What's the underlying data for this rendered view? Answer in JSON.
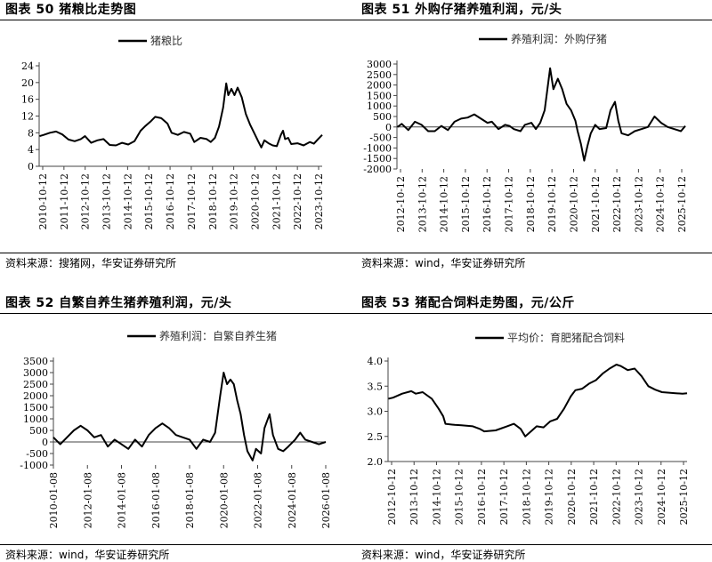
{
  "panels": [
    {
      "title": "图表 50 猪粮比走势图",
      "source": "资料来源：搜猪网，华安证券研究所"
    },
    {
      "title": "图表 51 外购仔猪养殖利润，元/头",
      "source": "资料来源：wind，华安证券研究所"
    },
    {
      "title": "图表 52 自繁自养生猪养殖利润，元/头",
      "source": "资料来源：wind，华安证券研究所"
    },
    {
      "title": "图表 53 猪配合饲料走势图，元/公斤",
      "source": "资料来源：wind，华安证券研究所"
    }
  ],
  "chart_data": [
    {
      "type": "line",
      "legend": "猪粮比",
      "legend_position": "top-center",
      "grid": false,
      "color": "#000000",
      "ylim": [
        0,
        24
      ],
      "yticks": [
        0,
        4,
        8,
        12,
        16,
        20,
        24
      ],
      "xlim": [
        2010.78,
        2024.5
      ],
      "xtick_labels": [
        "2010-10-12",
        "2011-10-12",
        "2012-10-12",
        "2013-10-12",
        "2014-10-12",
        "2015-10-12",
        "2016-10-12",
        "2017-10-12",
        "2018-10-12",
        "2019-10-12",
        "2020-10-12",
        "2021-10-12",
        "2022-10-12",
        "2023-10-12"
      ],
      "points": [
        [
          2010.8,
          7.2
        ],
        [
          2011.0,
          7.5
        ],
        [
          2011.3,
          8.0
        ],
        [
          2011.6,
          8.3
        ],
        [
          2011.9,
          7.6
        ],
        [
          2012.2,
          6.4
        ],
        [
          2012.5,
          6.0
        ],
        [
          2012.8,
          6.5
        ],
        [
          2013.0,
          7.2
        ],
        [
          2013.3,
          5.6
        ],
        [
          2013.6,
          6.2
        ],
        [
          2013.9,
          6.5
        ],
        [
          2014.2,
          5.1
        ],
        [
          2014.5,
          5.0
        ],
        [
          2014.8,
          5.6
        ],
        [
          2015.1,
          5.2
        ],
        [
          2015.4,
          6.0
        ],
        [
          2015.7,
          8.5
        ],
        [
          2015.9,
          9.5
        ],
        [
          2016.2,
          10.8
        ],
        [
          2016.4,
          11.8
        ],
        [
          2016.7,
          11.5
        ],
        [
          2017.0,
          10.2
        ],
        [
          2017.2,
          8.0
        ],
        [
          2017.5,
          7.5
        ],
        [
          2017.8,
          8.2
        ],
        [
          2018.1,
          7.8
        ],
        [
          2018.3,
          5.8
        ],
        [
          2018.6,
          6.8
        ],
        [
          2018.9,
          6.5
        ],
        [
          2019.1,
          5.8
        ],
        [
          2019.3,
          6.8
        ],
        [
          2019.5,
          9.5
        ],
        [
          2019.7,
          14.0
        ],
        [
          2019.85,
          19.8
        ],
        [
          2019.95,
          17.0
        ],
        [
          2020.1,
          18.5
        ],
        [
          2020.25,
          17.0
        ],
        [
          2020.4,
          18.8
        ],
        [
          2020.6,
          16.5
        ],
        [
          2020.8,
          12.5
        ],
        [
          2021.0,
          10.0
        ],
        [
          2021.2,
          8.0
        ],
        [
          2021.4,
          6.0
        ],
        [
          2021.55,
          4.5
        ],
        [
          2021.7,
          6.2
        ],
        [
          2021.9,
          5.5
        ],
        [
          2022.1,
          5.0
        ],
        [
          2022.3,
          4.8
        ],
        [
          2022.5,
          7.5
        ],
        [
          2022.6,
          8.5
        ],
        [
          2022.7,
          6.5
        ],
        [
          2022.85,
          6.8
        ],
        [
          2023.0,
          5.3
        ],
        [
          2023.3,
          5.5
        ],
        [
          2023.6,
          5.0
        ],
        [
          2023.9,
          5.8
        ],
        [
          2024.1,
          5.4
        ],
        [
          2024.3,
          6.5
        ],
        [
          2024.5,
          7.5
        ]
      ]
    },
    {
      "type": "line",
      "legend": "养殖利润：外购仔猪",
      "legend_position": "top-center",
      "grid": false,
      "color": "#000000",
      "ylim": [
        -2000,
        3000
      ],
      "yticks": [
        -2000,
        -1500,
        -1000,
        -500,
        0,
        500,
        1000,
        1500,
        2000,
        2500,
        3000
      ],
      "xlim": [
        2012.78,
        2025.9
      ],
      "xtick_labels": [
        "2012-10-12",
        "2013-10-12",
        "2014-10-12",
        "2015-10-12",
        "2016-10-12",
        "2017-10-12",
        "2018-10-12",
        "2019-10-12",
        "2020-10-12",
        "2021-10-12",
        "2022-10-12",
        "2023-10-12",
        "2024-10-12",
        "2025-10-12"
      ],
      "points": [
        [
          2012.8,
          0
        ],
        [
          2013.0,
          150
        ],
        [
          2013.3,
          -150
        ],
        [
          2013.6,
          250
        ],
        [
          2013.9,
          100
        ],
        [
          2014.2,
          -200
        ],
        [
          2014.5,
          -200
        ],
        [
          2014.8,
          50
        ],
        [
          2015.1,
          -150
        ],
        [
          2015.4,
          250
        ],
        [
          2015.7,
          400
        ],
        [
          2016.0,
          450
        ],
        [
          2016.3,
          600
        ],
        [
          2016.6,
          400
        ],
        [
          2016.9,
          200
        ],
        [
          2017.1,
          250
        ],
        [
          2017.4,
          -100
        ],
        [
          2017.7,
          100
        ],
        [
          2017.9,
          50
        ],
        [
          2018.1,
          -100
        ],
        [
          2018.4,
          -200
        ],
        [
          2018.6,
          100
        ],
        [
          2018.9,
          200
        ],
        [
          2019.1,
          -100
        ],
        [
          2019.3,
          200
        ],
        [
          2019.5,
          800
        ],
        [
          2019.75,
          2800
        ],
        [
          2019.9,
          1800
        ],
        [
          2020.1,
          2300
        ],
        [
          2020.3,
          1800
        ],
        [
          2020.5,
          1100
        ],
        [
          2020.7,
          800
        ],
        [
          2020.9,
          300
        ],
        [
          2021.0,
          -200
        ],
        [
          2021.15,
          -800
        ],
        [
          2021.3,
          -1600
        ],
        [
          2021.45,
          -900
        ],
        [
          2021.6,
          -300
        ],
        [
          2021.8,
          100
        ],
        [
          2022.0,
          -100
        ],
        [
          2022.3,
          -50
        ],
        [
          2022.5,
          800
        ],
        [
          2022.7,
          1200
        ],
        [
          2022.85,
          300
        ],
        [
          2023.0,
          -300
        ],
        [
          2023.3,
          -400
        ],
        [
          2023.6,
          -200
        ],
        [
          2023.9,
          -100
        ],
        [
          2024.2,
          0
        ],
        [
          2024.5,
          500
        ],
        [
          2024.8,
          200
        ],
        [
          2025.1,
          0
        ],
        [
          2025.4,
          -100
        ],
        [
          2025.7,
          -200
        ],
        [
          2025.9,
          50
        ]
      ]
    },
    {
      "type": "line",
      "legend": "养殖利润：自繁自养生猪",
      "legend_position": "top-center",
      "grid": false,
      "color": "#000000",
      "ylim": [
        -1000,
        3500
      ],
      "yticks": [
        -1000,
        -500,
        0,
        500,
        1000,
        1500,
        2000,
        2500,
        3000,
        3500
      ],
      "xlim": [
        2010.0,
        2026.0
      ],
      "xtick_labels": [
        "2010-01-08",
        "2012-01-08",
        "2014-01-08",
        "2016-01-08",
        "2018-01-08",
        "2020-01-08",
        "2022-01-08",
        "2024-01-08",
        "2026-01-08"
      ],
      "points": [
        [
          2010.0,
          200
        ],
        [
          2010.4,
          -100
        ],
        [
          2010.8,
          200
        ],
        [
          2011.2,
          500
        ],
        [
          2011.6,
          700
        ],
        [
          2012.0,
          500
        ],
        [
          2012.4,
          200
        ],
        [
          2012.8,
          300
        ],
        [
          2013.2,
          -200
        ],
        [
          2013.6,
          100
        ],
        [
          2014.0,
          -100
        ],
        [
          2014.4,
          -300
        ],
        [
          2014.8,
          100
        ],
        [
          2015.2,
          -200
        ],
        [
          2015.6,
          300
        ],
        [
          2016.0,
          600
        ],
        [
          2016.4,
          800
        ],
        [
          2016.8,
          600
        ],
        [
          2017.2,
          300
        ],
        [
          2017.6,
          200
        ],
        [
          2018.0,
          100
        ],
        [
          2018.4,
          -300
        ],
        [
          2018.8,
          100
        ],
        [
          2019.2,
          0
        ],
        [
          2019.5,
          400
        ],
        [
          2019.8,
          2000
        ],
        [
          2020.0,
          3000
        ],
        [
          2020.2,
          2500
        ],
        [
          2020.4,
          2700
        ],
        [
          2020.6,
          2500
        ],
        [
          2020.8,
          1800
        ],
        [
          2021.0,
          1200
        ],
        [
          2021.2,
          300
        ],
        [
          2021.4,
          -400
        ],
        [
          2021.7,
          -800
        ],
        [
          2021.9,
          -300
        ],
        [
          2022.2,
          -500
        ],
        [
          2022.4,
          600
        ],
        [
          2022.7,
          1200
        ],
        [
          2022.9,
          300
        ],
        [
          2023.2,
          -300
        ],
        [
          2023.5,
          -400
        ],
        [
          2023.8,
          -200
        ],
        [
          2024.2,
          100
        ],
        [
          2024.5,
          400
        ],
        [
          2024.8,
          100
        ],
        [
          2025.2,
          0
        ],
        [
          2025.6,
          -100
        ],
        [
          2026.0,
          0
        ]
      ]
    },
    {
      "type": "line",
      "legend": "平均价：育肥猪配合饲料",
      "legend_position": "top-center",
      "grid": false,
      "color": "#000000",
      "ylim": [
        2.0,
        4.0
      ],
      "yticks": [
        2.0,
        2.5,
        3.0,
        3.5,
        4.0
      ],
      "xlim": [
        2012.78,
        2025.9
      ],
      "xtick_labels": [
        "2012-10-12",
        "2013-10-12",
        "2014-10-12",
        "2015-10-12",
        "2016-10-12",
        "2017-10-12",
        "2018-10-12",
        "2019-10-12",
        "2020-10-12",
        "2021-10-12",
        "2022-10-12",
        "2023-10-12",
        "2024-10-12",
        "2025-10-12"
      ],
      "points": [
        [
          2012.8,
          3.25
        ],
        [
          2013.0,
          3.27
        ],
        [
          2013.4,
          3.35
        ],
        [
          2013.8,
          3.4
        ],
        [
          2014.0,
          3.35
        ],
        [
          2014.3,
          3.38
        ],
        [
          2014.7,
          3.25
        ],
        [
          2015.0,
          3.05
        ],
        [
          2015.2,
          2.9
        ],
        [
          2015.3,
          2.75
        ],
        [
          2015.7,
          2.73
        ],
        [
          2016.0,
          2.72
        ],
        [
          2016.5,
          2.7
        ],
        [
          2016.8,
          2.65
        ],
        [
          2017.0,
          2.6
        ],
        [
          2017.5,
          2.62
        ],
        [
          2018.0,
          2.7
        ],
        [
          2018.3,
          2.75
        ],
        [
          2018.6,
          2.65
        ],
        [
          2018.8,
          2.5
        ],
        [
          2019.0,
          2.58
        ],
        [
          2019.3,
          2.7
        ],
        [
          2019.6,
          2.68
        ],
        [
          2019.9,
          2.8
        ],
        [
          2020.2,
          2.85
        ],
        [
          2020.5,
          3.05
        ],
        [
          2020.8,
          3.3
        ],
        [
          2021.0,
          3.42
        ],
        [
          2021.3,
          3.45
        ],
        [
          2021.6,
          3.55
        ],
        [
          2021.9,
          3.62
        ],
        [
          2022.2,
          3.75
        ],
        [
          2022.5,
          3.85
        ],
        [
          2022.8,
          3.93
        ],
        [
          2023.0,
          3.9
        ],
        [
          2023.3,
          3.82
        ],
        [
          2023.6,
          3.85
        ],
        [
          2023.9,
          3.7
        ],
        [
          2024.2,
          3.5
        ],
        [
          2024.5,
          3.43
        ],
        [
          2024.8,
          3.38
        ],
        [
          2025.1,
          3.37
        ],
        [
          2025.4,
          3.36
        ],
        [
          2025.7,
          3.35
        ],
        [
          2025.9,
          3.36
        ]
      ]
    }
  ]
}
